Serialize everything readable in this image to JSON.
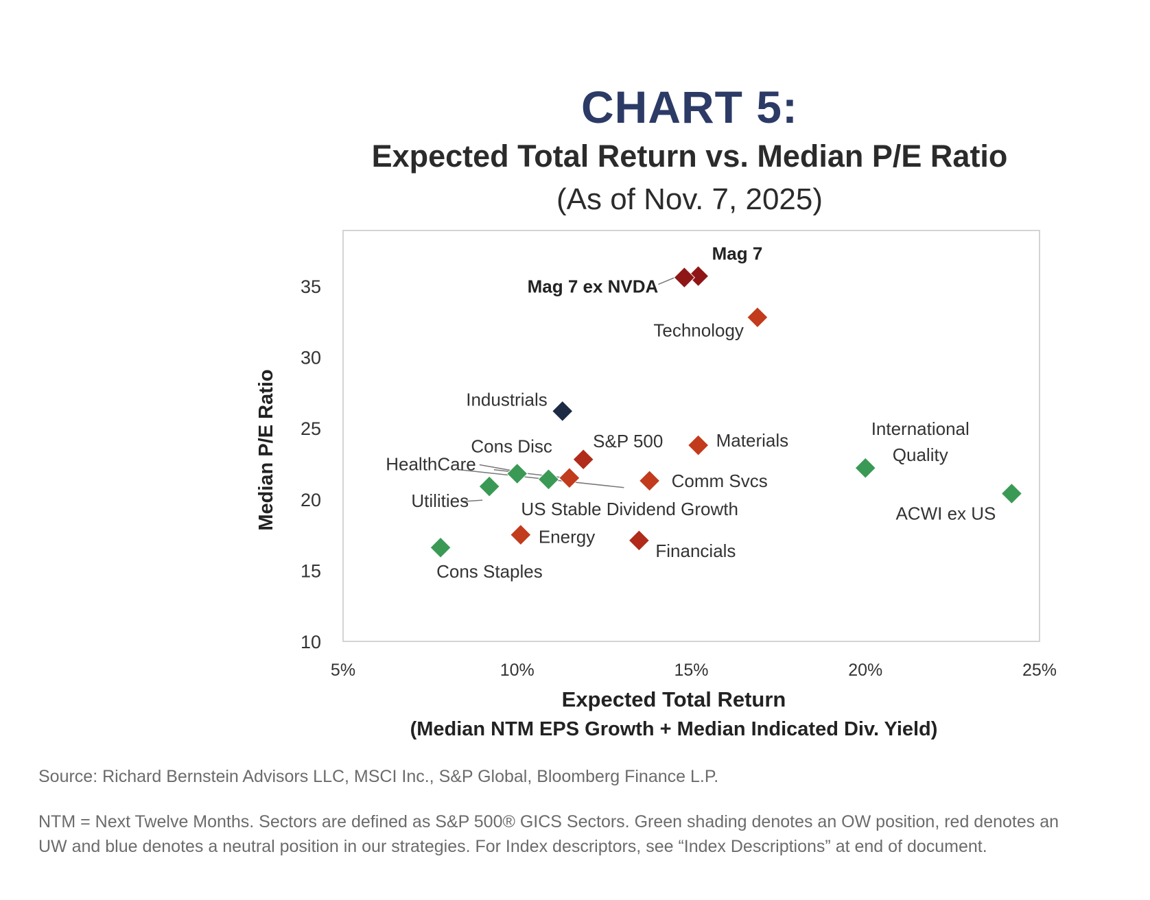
{
  "header": {
    "title": "CHART 5:",
    "subtitle": "Expected Total Return vs. Median P/E Ratio",
    "as_of": "(As of Nov. 7, 2025)"
  },
  "footer": {
    "source": "Source: Richard Bernstein Advisors LLC, MSCI Inc., S&P Global, Bloomberg Finance L.P.",
    "note": "NTM = Next Twelve Months. Sectors are defined as S&P 500® GICS Sectors. Green shading denotes an OW position, red denotes an UW and blue denotes a neutral position in our strategies. For Index descriptors, see “Index Descriptions” at end of document."
  },
  "colors": {
    "overweight": "#3a9a55",
    "underweight": "#c23b1c",
    "underweight_dark": "#8f1616",
    "neutral": "#1d2b44",
    "title": "#2c3a66"
  },
  "chart_data": {
    "type": "scatter",
    "title": "CHART 5:",
    "subtitle": "Expected Total Return vs. Median P/E Ratio",
    "xlabel": "Expected Total Return",
    "xlabel2": "(Median NTM EPS Growth + Median Indicated Div. Yield)",
    "ylabel": "Median P/E Ratio",
    "xlim": [
      5,
      25
    ],
    "ylim": [
      10,
      38
    ],
    "x_ticks": [
      5,
      10,
      15,
      20,
      25
    ],
    "x_tick_labels": [
      "5%",
      "10%",
      "15%",
      "20%",
      "25%"
    ],
    "y_ticks": [
      10,
      15,
      20,
      25,
      30,
      35
    ],
    "y_tick_labels": [
      "10",
      "15",
      "20",
      "25",
      "30",
      "35"
    ],
    "grid": false,
    "points": [
      {
        "label": "Mag 7",
        "x": 15.2,
        "y": 35.7,
        "position": "underweight",
        "color": "#8f1616"
      },
      {
        "label": "Mag 7 ex NVDA",
        "x": 14.8,
        "y": 35.6,
        "position": "underweight",
        "color": "#8f1616"
      },
      {
        "label": "Technology",
        "x": 16.9,
        "y": 32.8,
        "position": "underweight",
        "color": "#c23b1c"
      },
      {
        "label": "Industrials",
        "x": 11.3,
        "y": 26.2,
        "position": "neutral",
        "color": "#1d2b44"
      },
      {
        "label": "S&P 500",
        "x": 11.9,
        "y": 22.8,
        "position": "underweight",
        "color": "#b02b1a"
      },
      {
        "label": "Materials",
        "x": 15.2,
        "y": 23.8,
        "position": "underweight",
        "color": "#c23b1c"
      },
      {
        "label": "Cons Disc",
        "x": 11.5,
        "y": 21.5,
        "position": "underweight",
        "color": "#c23b1c"
      },
      {
        "label": "US Stable Dividend Growth",
        "x": 10.9,
        "y": 21.4,
        "position": "overweight",
        "color": "#3a9a55"
      },
      {
        "label": "HealthCare",
        "x": 10.0,
        "y": 21.8,
        "position": "overweight",
        "color": "#3a9a55"
      },
      {
        "label": "Utilities",
        "x": 9.2,
        "y": 20.9,
        "position": "overweight",
        "color": "#3a9a55"
      },
      {
        "label": "Comm Svcs",
        "x": 13.8,
        "y": 21.3,
        "position": "underweight",
        "color": "#c23b1c"
      },
      {
        "label": "Energy",
        "x": 10.1,
        "y": 17.5,
        "position": "underweight",
        "color": "#c23b1c"
      },
      {
        "label": "Financials",
        "x": 13.5,
        "y": 17.1,
        "position": "underweight",
        "color": "#b02b1a"
      },
      {
        "label": "Cons Staples",
        "x": 7.8,
        "y": 16.6,
        "position": "overweight",
        "color": "#3a9a55"
      },
      {
        "label": "International Quality",
        "x": 20.0,
        "y": 22.2,
        "position": "overweight",
        "color": "#3a9a55"
      },
      {
        "label": "ACWI ex US",
        "x": 24.2,
        "y": 20.4,
        "position": "overweight",
        "color": "#3a9a55"
      }
    ]
  }
}
